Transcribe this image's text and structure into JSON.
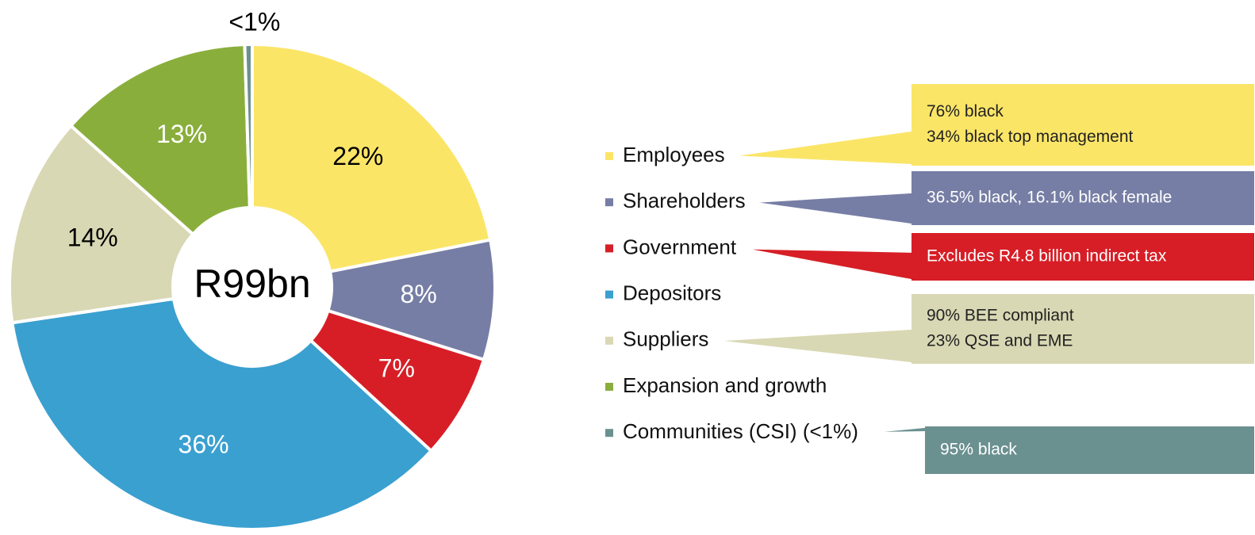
{
  "chart_data": {
    "type": "donut",
    "center_label": "R99bn",
    "categories": [
      "Employees",
      "Shareholders",
      "Government",
      "Depositors",
      "Suppliers",
      "Expansion and growth",
      "Communities (CSI) (<1%)"
    ],
    "values": [
      22,
      8,
      7,
      36,
      14,
      13,
      0.5
    ],
    "value_labels": [
      "22%",
      "8%",
      "7%",
      "36%",
      "14%",
      "13%",
      "<1%"
    ],
    "colors": [
      "#fbe567",
      "#767ea5",
      "#d71e26",
      "#3aa0d0",
      "#d9d8b4",
      "#8aae3c",
      "#6b9090"
    ],
    "callouts": [
      [
        "76% black",
        "34% black top management"
      ],
      [
        "36.5% black, 16.1% black female"
      ],
      [
        "Excludes R4.8 billion indirect tax"
      ],
      null,
      [
        "90% BEE compliant",
        "23% QSE and EME"
      ],
      null,
      [
        "95% black"
      ]
    ]
  }
}
